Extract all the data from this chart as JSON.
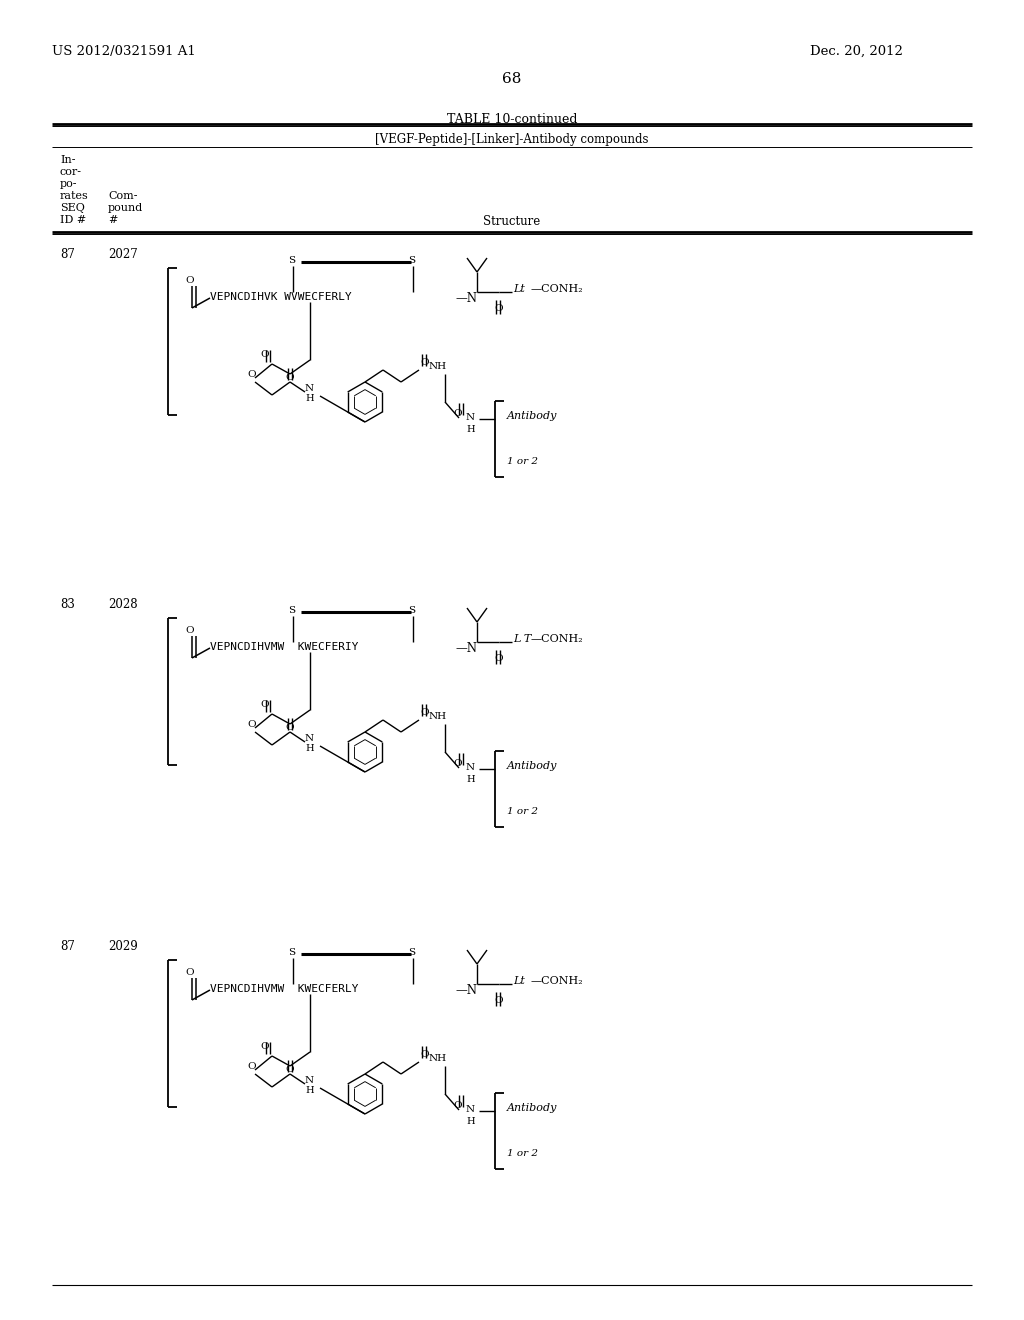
{
  "background_color": "#ffffff",
  "page_number": "68",
  "left_header": "US 2012/0321591 A1",
  "right_header": "Dec. 20, 2012",
  "table_title": "TABLE 10-continued",
  "table_subtitle": "[VEGF-Peptide]-[Linker]-Antibody compounds",
  "rows": [
    {
      "seq_id": "87",
      "compound": "2027",
      "peptide": "VEPNCDIHVK WVWECFERLY",
      "lt": "Lt"
    },
    {
      "seq_id": "83",
      "compound": "2028",
      "peptide": "VEPNCDIHVMW  KWECFERIY",
      "lt": "L T"
    },
    {
      "seq_id": "87",
      "compound": "2029",
      "peptide": "VEPNCDIHVMW  KWECFERLY",
      "lt": "Lt"
    }
  ]
}
